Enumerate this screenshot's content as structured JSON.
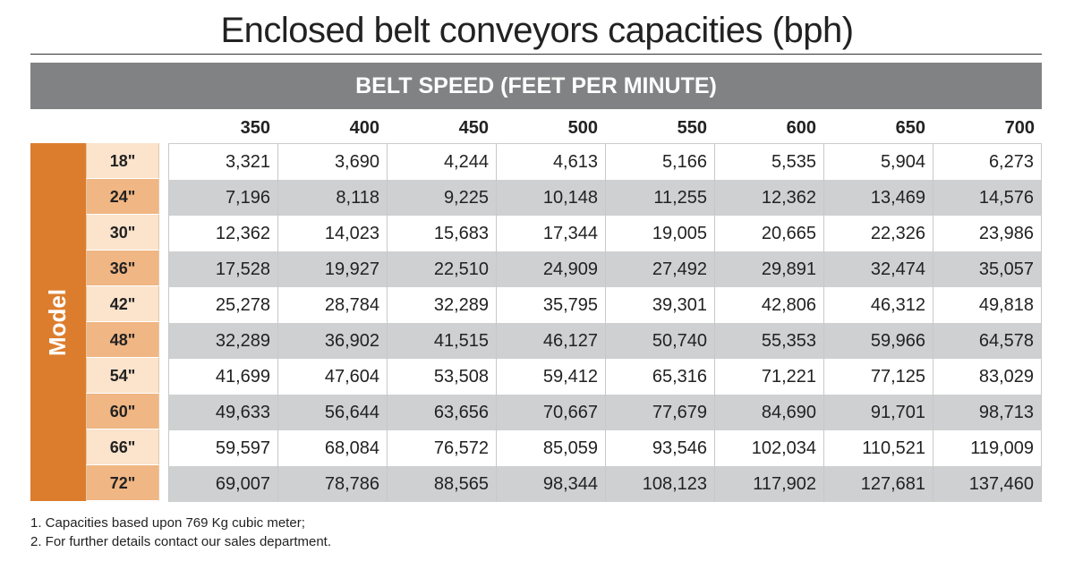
{
  "title": "Enclosed belt conveyors capacities (bph)",
  "banner": "BELT SPEED (FEET PER MINUTE)",
  "model_label": "Model",
  "speeds": [
    "350",
    "400",
    "450",
    "500",
    "550",
    "600",
    "650",
    "700"
  ],
  "sizes": [
    "18\"",
    "24\"",
    "30\"",
    "36\"",
    "42\"",
    "48\"",
    "54\"",
    "60\"",
    "66\"",
    "72\""
  ],
  "rows": [
    [
      "3,321",
      "3,690",
      "4,244",
      "4,613",
      "5,166",
      "5,535",
      "5,904",
      "6,273"
    ],
    [
      "7,196",
      "8,118",
      "9,225",
      "10,148",
      "11,255",
      "12,362",
      "13,469",
      "14,576"
    ],
    [
      "12,362",
      "14,023",
      "15,683",
      "17,344",
      "19,005",
      "20,665",
      "22,326",
      "23,986"
    ],
    [
      "17,528",
      "19,927",
      "22,510",
      "24,909",
      "27,492",
      "29,891",
      "32,474",
      "35,057"
    ],
    [
      "25,278",
      "28,784",
      "32,289",
      "35,795",
      "39,301",
      "42,806",
      "46,312",
      "49,818"
    ],
    [
      "32,289",
      "36,902",
      "41,515",
      "46,127",
      "50,740",
      "55,353",
      "59,966",
      "64,578"
    ],
    [
      "41,699",
      "47,604",
      "53,508",
      "59,412",
      "65,316",
      "71,221",
      "77,125",
      "83,029"
    ],
    [
      "49,633",
      "56,644",
      "63,656",
      "70,667",
      "77,679",
      "84,690",
      "91,701",
      "98,713"
    ],
    [
      "59,597",
      "68,084",
      "76,572",
      "85,059",
      "93,546",
      "102,034",
      "110,521",
      "119,009"
    ],
    [
      "69,007",
      "78,786",
      "88,565",
      "98,344",
      "108,123",
      "117,902",
      "127,681",
      "137,460"
    ]
  ],
  "notes": [
    "1.  Capacities based upon 769 Kg cubic meter;",
    "2.  For further details contact our sales department."
  ]
}
